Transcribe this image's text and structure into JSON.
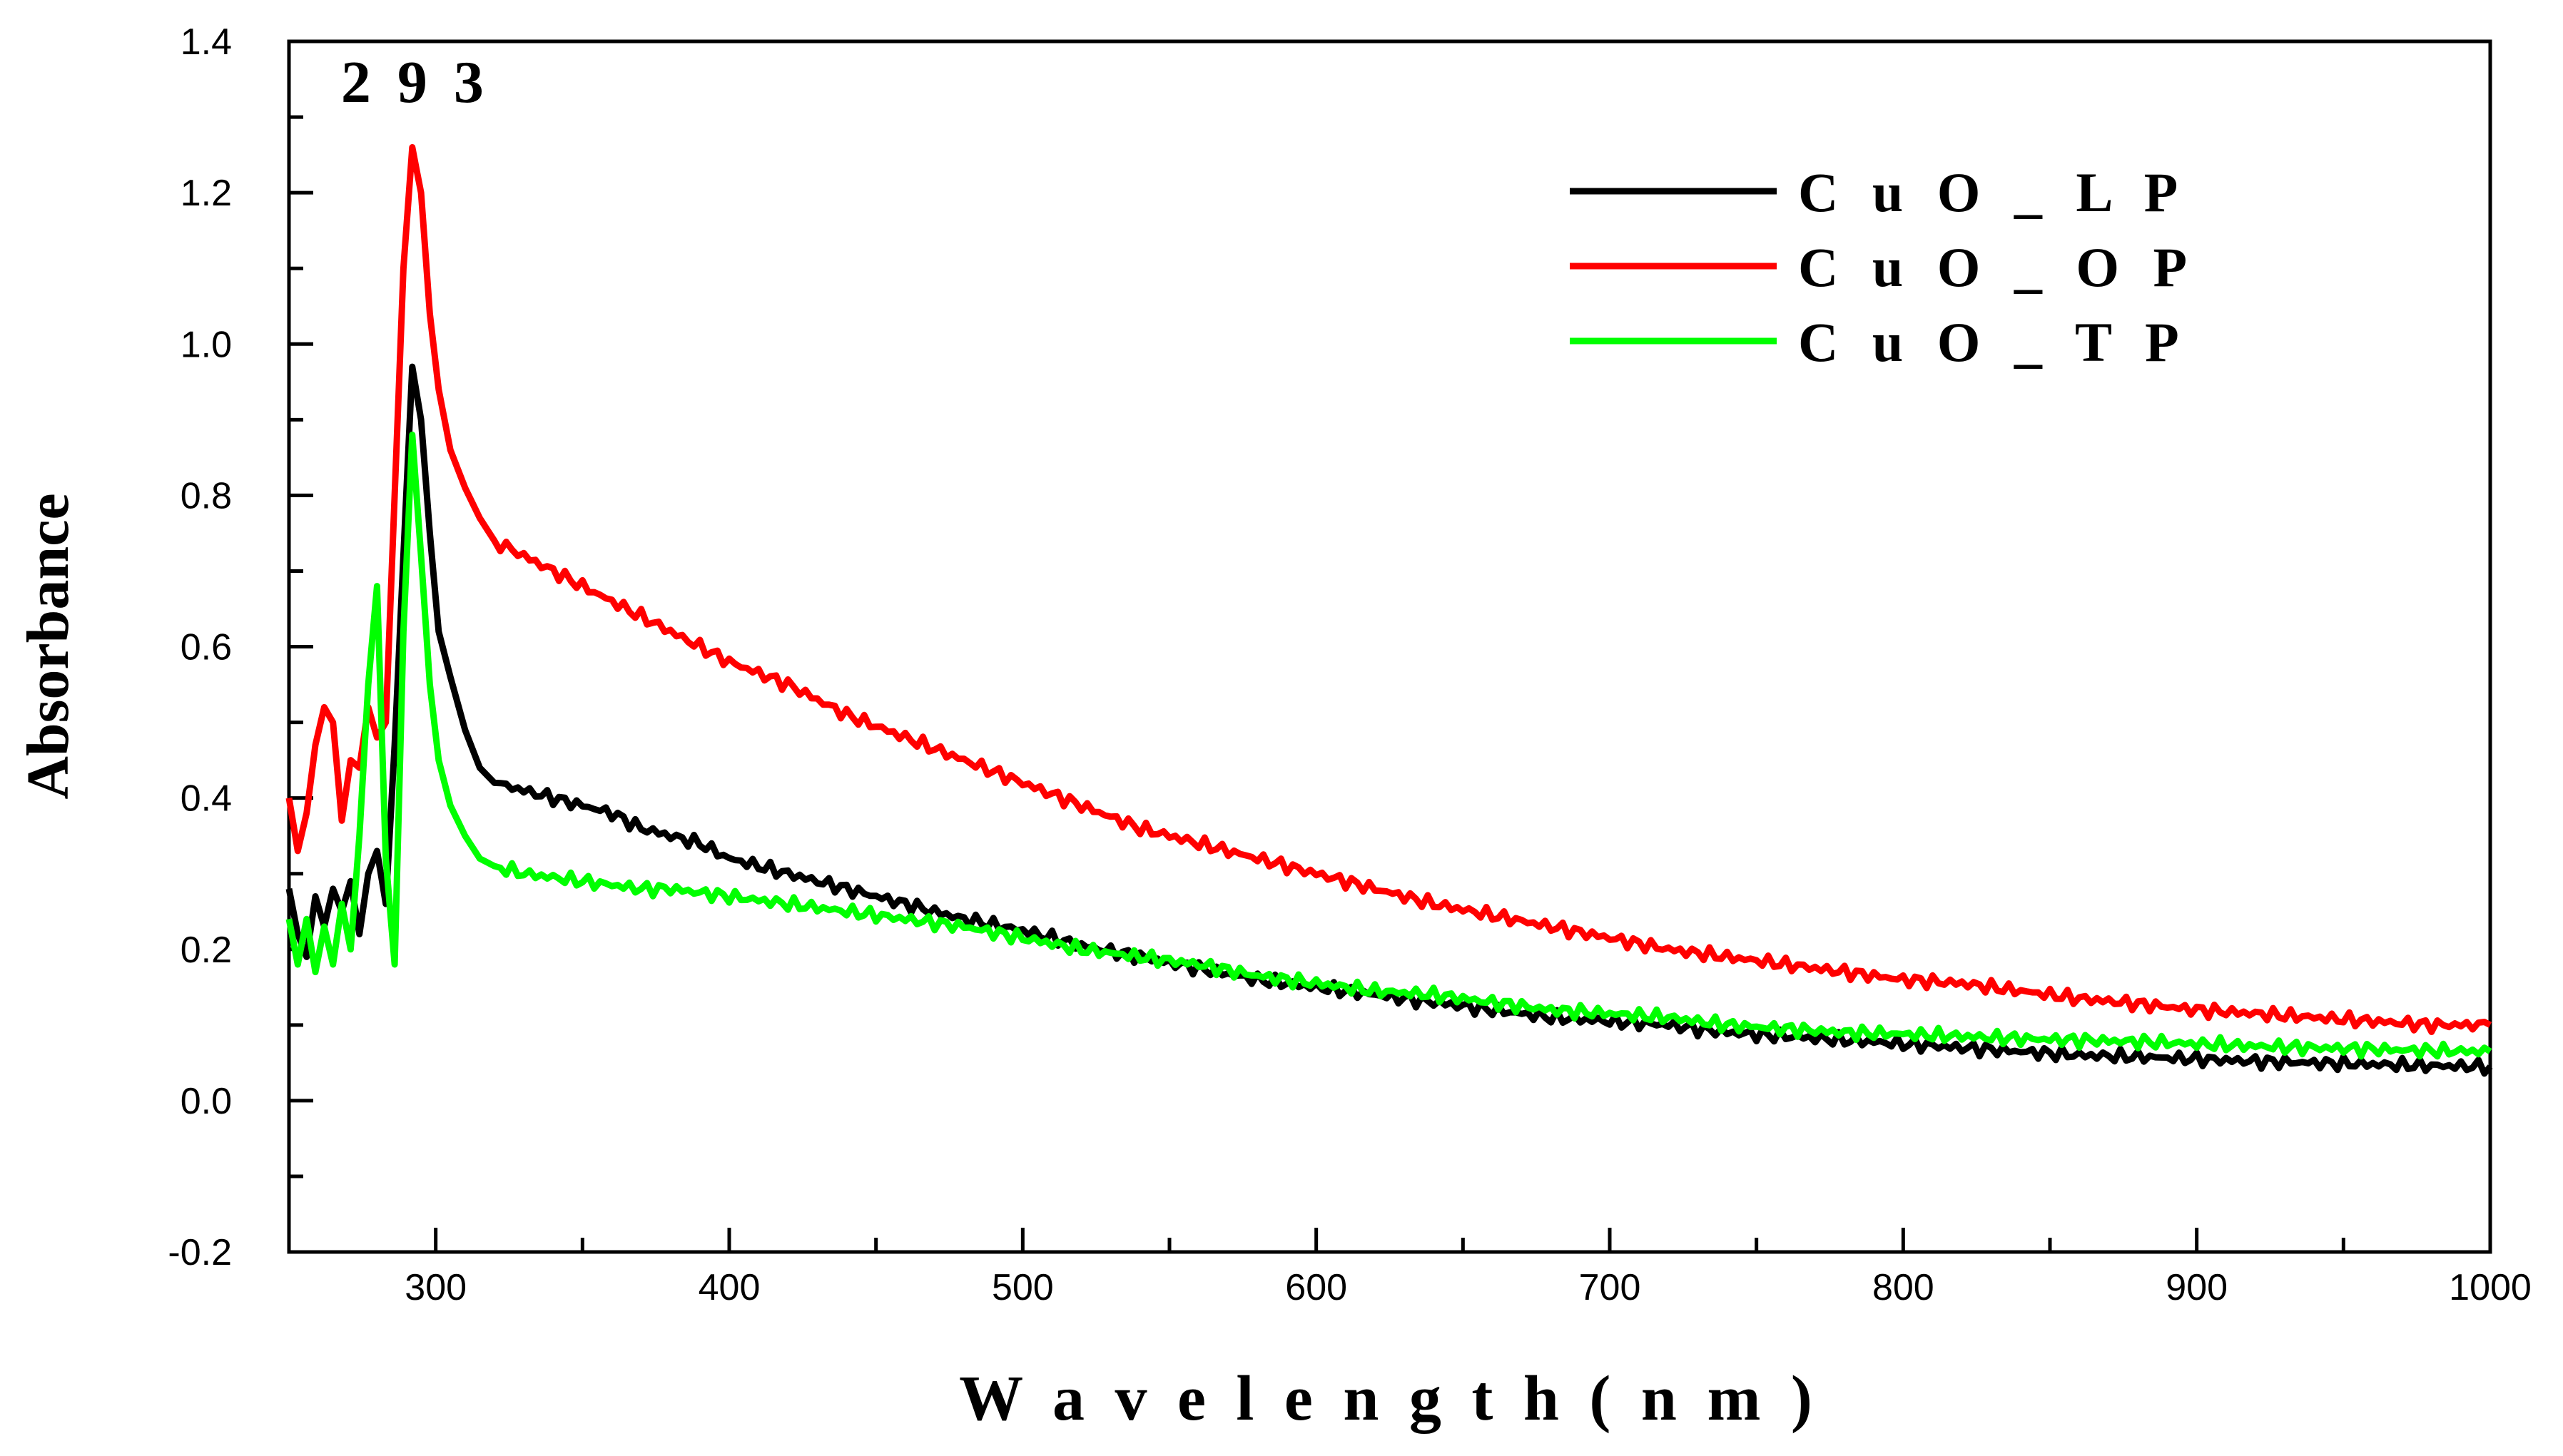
{
  "chart_data": {
    "type": "line",
    "title": "",
    "xlabel": "W a v e l e n g t h  ( n m )",
    "ylabel": "Absorbance",
    "xlim": [
      250,
      1000
    ],
    "ylim": [
      -0.2,
      1.4
    ],
    "x_ticks": [
      300,
      400,
      500,
      600,
      700,
      800,
      900,
      1000
    ],
    "x_tick_labels": [
      "300",
      "400",
      "500",
      "600",
      "700",
      "800",
      "900",
      "1000"
    ],
    "y_ticks": [
      -0.2,
      0.0,
      0.2,
      0.4,
      0.6,
      0.8,
      1.0,
      1.2,
      1.4
    ],
    "y_tick_labels": [
      "-0.2",
      "0.0",
      "0.2",
      "0.4",
      "0.6",
      "0.8",
      "1.0",
      "1.2",
      "1.4"
    ],
    "legend_position": "top-right",
    "annotation": {
      "text": "2 9 3",
      "x": 293,
      "y": 1.32
    },
    "series": [
      {
        "name": "C u O _ L P",
        "color": "#000000",
        "x": [
          250,
          253,
          256,
          259,
          262,
          265,
          268,
          271,
          274,
          277,
          280,
          283,
          286,
          289,
          292,
          295,
          298,
          301,
          305,
          310,
          315,
          320,
          330,
          340,
          350,
          360,
          370,
          380,
          390,
          400,
          420,
          440,
          460,
          480,
          500,
          520,
          540,
          560,
          580,
          600,
          620,
          640,
          660,
          680,
          700,
          720,
          740,
          760,
          780,
          800,
          820,
          840,
          860,
          880,
          900,
          920,
          940,
          960,
          980,
          1000
        ],
        "y": [
          0.28,
          0.22,
          0.19,
          0.27,
          0.23,
          0.28,
          0.25,
          0.29,
          0.22,
          0.3,
          0.33,
          0.26,
          0.47,
          0.72,
          0.97,
          0.9,
          0.75,
          0.62,
          0.56,
          0.49,
          0.44,
          0.42,
          0.41,
          0.4,
          0.39,
          0.38,
          0.36,
          0.35,
          0.34,
          0.32,
          0.3,
          0.28,
          0.26,
          0.24,
          0.225,
          0.205,
          0.19,
          0.175,
          0.16,
          0.15,
          0.14,
          0.13,
          0.12,
          0.11,
          0.105,
          0.1,
          0.09,
          0.085,
          0.08,
          0.075,
          0.07,
          0.065,
          0.06,
          0.058,
          0.055,
          0.052,
          0.05,
          0.048,
          0.046,
          0.045
        ]
      },
      {
        "name": "C u O _ O P",
        "color": "#ff0000",
        "x": [
          250,
          253,
          256,
          259,
          262,
          265,
          268,
          271,
          274,
          277,
          280,
          283,
          286,
          289,
          292,
          295,
          298,
          301,
          305,
          310,
          315,
          320,
          330,
          340,
          350,
          360,
          370,
          380,
          390,
          400,
          420,
          440,
          460,
          480,
          500,
          520,
          540,
          560,
          580,
          600,
          620,
          640,
          660,
          680,
          700,
          720,
          740,
          760,
          780,
          800,
          820,
          840,
          860,
          880,
          900,
          920,
          940,
          960,
          980,
          1000
        ],
        "y": [
          0.4,
          0.33,
          0.38,
          0.47,
          0.52,
          0.5,
          0.37,
          0.45,
          0.44,
          0.52,
          0.48,
          0.5,
          0.8,
          1.1,
          1.26,
          1.2,
          1.04,
          0.94,
          0.86,
          0.81,
          0.77,
          0.74,
          0.72,
          0.7,
          0.68,
          0.66,
          0.64,
          0.62,
          0.6,
          0.58,
          0.55,
          0.51,
          0.48,
          0.45,
          0.42,
          0.39,
          0.36,
          0.34,
          0.32,
          0.3,
          0.28,
          0.26,
          0.245,
          0.23,
          0.215,
          0.2,
          0.19,
          0.18,
          0.17,
          0.16,
          0.155,
          0.145,
          0.135,
          0.128,
          0.12,
          0.115,
          0.11,
          0.105,
          0.1,
          0.1
        ]
      },
      {
        "name": "C u O _ T P",
        "color": "#00ff00",
        "x": [
          250,
          253,
          256,
          259,
          262,
          265,
          268,
          271,
          274,
          277,
          280,
          283,
          286,
          289,
          292,
          295,
          298,
          301,
          305,
          310,
          315,
          320,
          330,
          340,
          350,
          360,
          370,
          380,
          390,
          400,
          420,
          440,
          460,
          480,
          500,
          520,
          540,
          560,
          580,
          600,
          620,
          640,
          660,
          680,
          700,
          720,
          740,
          760,
          780,
          800,
          820,
          840,
          860,
          880,
          900,
          920,
          940,
          960,
          980,
          1000
        ],
        "y": [
          0.24,
          0.18,
          0.24,
          0.17,
          0.23,
          0.18,
          0.26,
          0.2,
          0.35,
          0.55,
          0.68,
          0.32,
          0.18,
          0.62,
          0.88,
          0.72,
          0.55,
          0.45,
          0.39,
          0.35,
          0.32,
          0.31,
          0.3,
          0.295,
          0.29,
          0.285,
          0.28,
          0.28,
          0.275,
          0.27,
          0.26,
          0.25,
          0.24,
          0.23,
          0.215,
          0.2,
          0.19,
          0.18,
          0.165,
          0.155,
          0.145,
          0.14,
          0.13,
          0.12,
          0.115,
          0.11,
          0.1,
          0.095,
          0.09,
          0.088,
          0.085,
          0.082,
          0.08,
          0.078,
          0.075,
          0.072,
          0.07,
          0.068,
          0.066,
          0.065
        ]
      }
    ]
  }
}
